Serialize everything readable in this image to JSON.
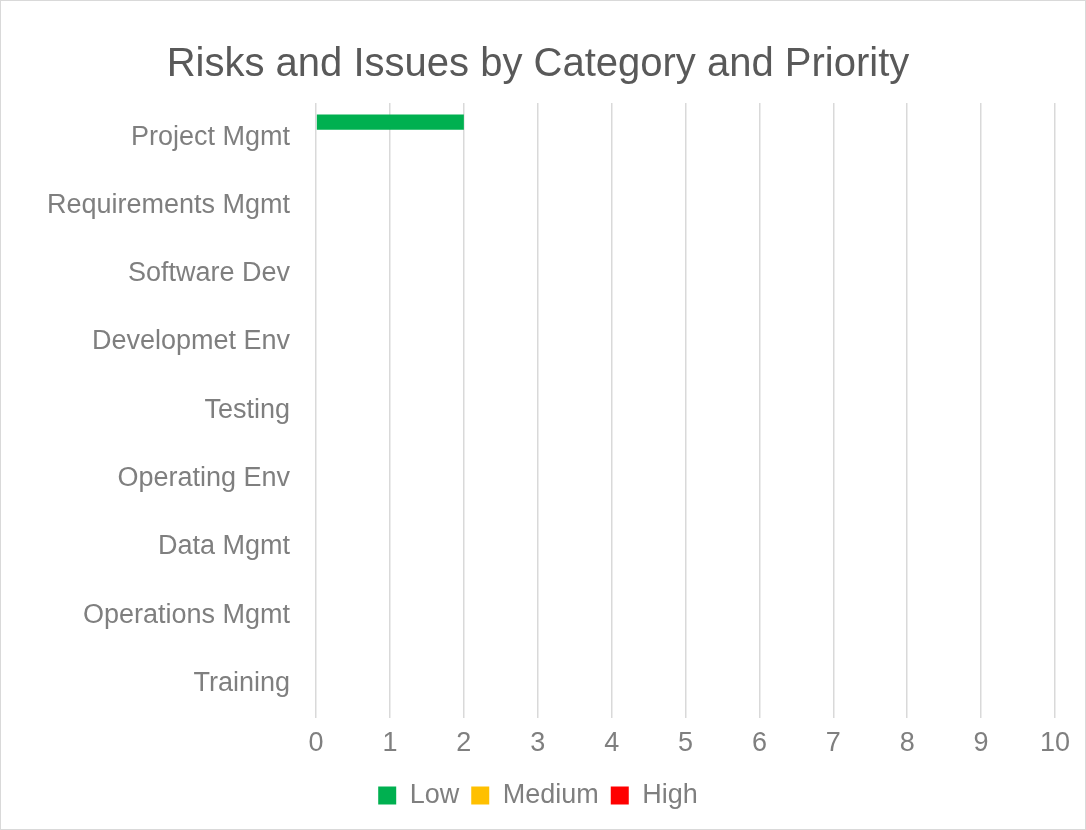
{
  "chart_data": {
    "type": "bar",
    "orientation": "horizontal",
    "title": "Risks and Issues by Category and Priority",
    "categories": [
      "Project Mgmt",
      "Requirements Mgmt",
      "Software Dev",
      "Developmet Env",
      "Testing",
      "Operating Env",
      "Data Mgmt",
      "Operations Mgmt",
      "Training"
    ],
    "series": [
      {
        "name": "Low",
        "color": "#00b050",
        "values": [
          2,
          0,
          0,
          0,
          0,
          0,
          0,
          0,
          0
        ]
      },
      {
        "name": "Medium",
        "color": "#ffc000",
        "values": [
          0,
          0,
          0,
          0,
          0,
          0,
          0,
          0,
          0
        ]
      },
      {
        "name": "High",
        "color": "#ff0000",
        "values": [
          0,
          0,
          0,
          0,
          0,
          0,
          0,
          0,
          0
        ]
      }
    ],
    "xlim": [
      0,
      10
    ],
    "xticks": [
      0,
      1,
      2,
      3,
      4,
      5,
      6,
      7,
      8,
      9,
      10
    ],
    "grid": "x",
    "legend": "bottom"
  }
}
